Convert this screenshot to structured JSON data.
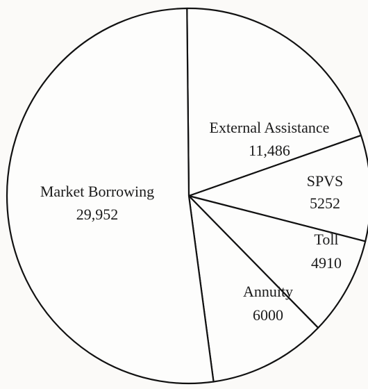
{
  "chart_data": {
    "type": "pie",
    "title": "",
    "categories": [
      "Market Borrowing",
      "External Assistance",
      "SPVS",
      "Toll",
      "Annuity"
    ],
    "values": [
      29952,
      11486,
      5252,
      4910,
      6000
    ],
    "labels": [
      "Market Borrowing",
      "External Assistance",
      "SPVS",
      "Toll",
      "Annuity"
    ],
    "value_labels": [
      "29,952",
      "11,486",
      "5252",
      "4910",
      "6000"
    ],
    "colors": [
      "#fdfdfc",
      "#fdfdfc",
      "#fdfdfc",
      "#fdfdfc",
      "#fdfdfc"
    ],
    "legend": "none",
    "grid": false
  }
}
